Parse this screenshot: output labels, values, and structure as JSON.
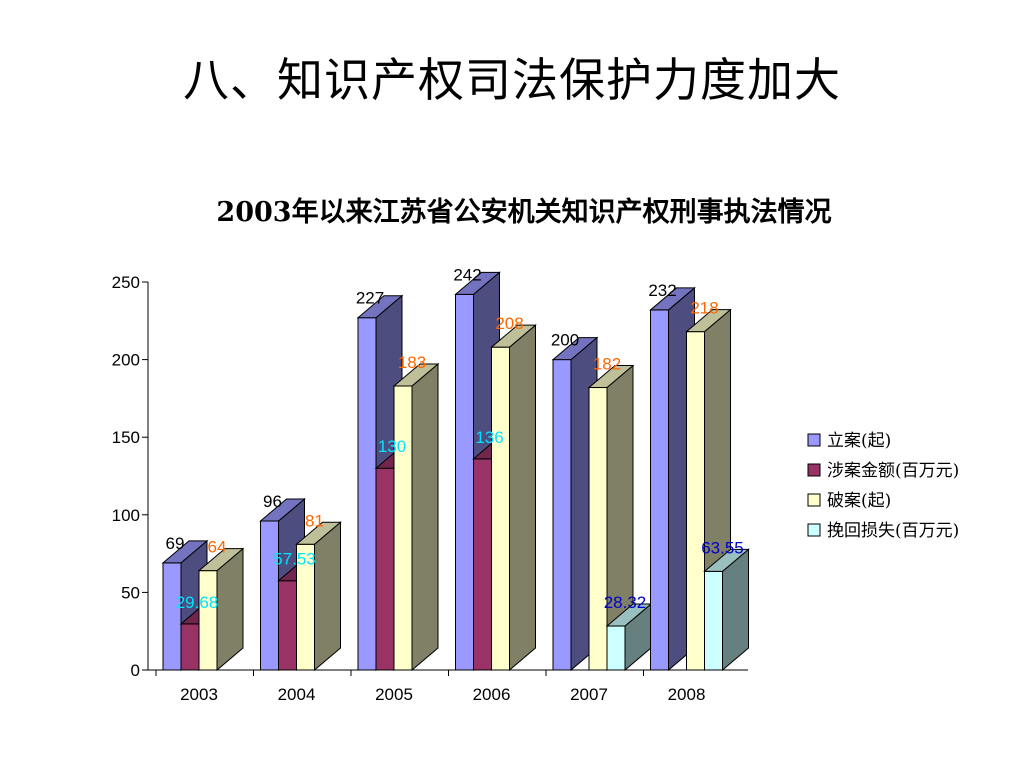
{
  "slide": {
    "title": "八、知识产权司法保护力度加大"
  },
  "chart_data": {
    "type": "bar",
    "title": "2003年以来江苏省公安机关知识产权刑事执法情况",
    "categories": [
      "2003",
      "2004",
      "2005",
      "2006",
      "2007",
      "2008"
    ],
    "ylim": [
      0,
      250
    ],
    "yticks": [
      0,
      50,
      100,
      150,
      200,
      250
    ],
    "grid": false,
    "legend_position": "right",
    "three_d": true,
    "series": [
      {
        "name": "立案(起)",
        "values": [
          69,
          96,
          227,
          242,
          200,
          232
        ],
        "labels": [
          "69",
          "96",
          "227",
          "242",
          "200",
          "232"
        ],
        "color": "#9999ff",
        "label_color": "#000000"
      },
      {
        "name": "涉案金额(百万元)",
        "values": [
          29.68,
          57.53,
          130,
          136,
          null,
          null
        ],
        "labels": [
          "29.68",
          "57.53",
          "130",
          "136",
          "",
          ""
        ],
        "color": "#993366",
        "label_color": "#00e5ff"
      },
      {
        "name": "破案(起)",
        "values": [
          64,
          81,
          183,
          208,
          182,
          218
        ],
        "labels": [
          "64",
          "81",
          "183",
          "208",
          "182",
          "218"
        ],
        "color": "#ffffcc",
        "label_color": "#ff6600"
      },
      {
        "name": "挽回损失(百万元)",
        "values": [
          null,
          null,
          null,
          null,
          28.32,
          63.55
        ],
        "labels": [
          "",
          "",
          "",
          "",
          "28.32",
          "63.55"
        ],
        "color": "#ccffff",
        "label_color": "#0000cc"
      }
    ]
  }
}
